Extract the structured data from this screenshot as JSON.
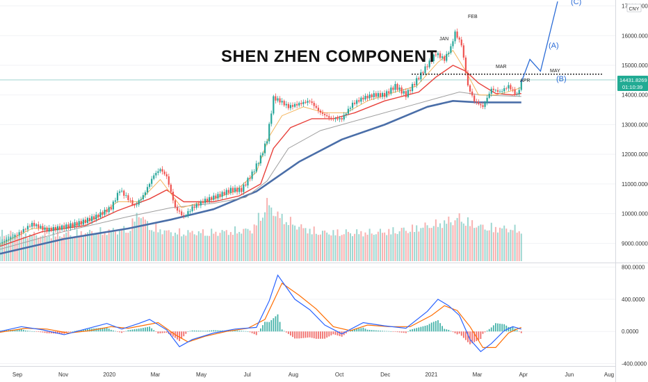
{
  "chart_data": [
    {
      "type": "candlestick",
      "title": "SHEN ZHEN COMPONENT",
      "currency_badge": "CNY",
      "ylim": [
        8400,
        17200
      ],
      "yticks": [
        "17000.0000",
        "16000.0000",
        "15000.0000",
        "14000.0000",
        "13000.0000",
        "12000.0000",
        "11000.0000",
        "10000.0000",
        "9000.0000"
      ],
      "ytick_values": [
        17000,
        16000,
        15000,
        14000,
        13000,
        12000,
        11000,
        10000,
        9000
      ],
      "last_price_label": "14431.8269",
      "countdown_label": "01:10:39",
      "last_price": 14431.8269,
      "price_path": [
        [
          0,
          9000
        ],
        [
          8,
          9300
        ],
        [
          15,
          9650
        ],
        [
          22,
          9450
        ],
        [
          30,
          9550
        ],
        [
          38,
          9700
        ],
        [
          45,
          9900
        ],
        [
          52,
          10200
        ],
        [
          56,
          10800
        ],
        [
          60,
          10500
        ],
        [
          63,
          10250
        ],
        [
          67,
          10600
        ],
        [
          72,
          11300
        ],
        [
          75,
          11500
        ],
        [
          78,
          11250
        ],
        [
          82,
          10200
        ],
        [
          86,
          9900
        ],
        [
          90,
          10200
        ],
        [
          96,
          10450
        ],
        [
          102,
          10600
        ],
        [
          108,
          10800
        ],
        [
          113,
          10800
        ],
        [
          118,
          11350
        ],
        [
          122,
          11900
        ],
        [
          125,
          12500
        ],
        [
          128,
          13900
        ],
        [
          131,
          13800
        ],
        [
          135,
          13600
        ],
        [
          140,
          13700
        ],
        [
          145,
          13800
        ],
        [
          150,
          13400
        ],
        [
          155,
          13200
        ],
        [
          160,
          13200
        ],
        [
          165,
          13700
        ],
        [
          170,
          13900
        ],
        [
          175,
          14000
        ],
        [
          180,
          14000
        ],
        [
          185,
          14300
        ],
        [
          190,
          14000
        ],
        [
          195,
          14500
        ],
        [
          200,
          15000
        ],
        [
          204,
          15400
        ],
        [
          208,
          15200
        ],
        [
          211,
          15600
        ],
        [
          213,
          16100
        ],
        [
          216,
          15700
        ],
        [
          219,
          14300
        ],
        [
          222,
          13800
        ],
        [
          226,
          13600
        ],
        [
          230,
          14200
        ],
        [
          234,
          14100
        ],
        [
          238,
          14300
        ],
        [
          242,
          14000
        ],
        [
          244,
          14430
        ]
      ],
      "ema_fast_path": [
        [
          0,
          8950
        ],
        [
          15,
          9500
        ],
        [
          30,
          9500
        ],
        [
          45,
          9850
        ],
        [
          55,
          10400
        ],
        [
          65,
          10400
        ],
        [
          75,
          11150
        ],
        [
          85,
          10200
        ],
        [
          100,
          10500
        ],
        [
          110,
          10750
        ],
        [
          120,
          11400
        ],
        [
          126,
          12600
        ],
        [
          132,
          13300
        ],
        [
          142,
          13600
        ],
        [
          152,
          13400
        ],
        [
          162,
          13400
        ],
        [
          172,
          13800
        ],
        [
          185,
          14100
        ],
        [
          195,
          14300
        ],
        [
          205,
          15100
        ],
        [
          212,
          15500
        ],
        [
          218,
          14800
        ],
        [
          224,
          14000
        ],
        [
          232,
          14000
        ],
        [
          240,
          14150
        ],
        [
          244,
          14250
        ]
      ],
      "ema_mid_path": [
        [
          0,
          8900
        ],
        [
          20,
          9400
        ],
        [
          40,
          9600
        ],
        [
          55,
          10100
        ],
        [
          70,
          10500
        ],
        [
          78,
          10800
        ],
        [
          86,
          10400
        ],
        [
          100,
          10400
        ],
        [
          112,
          10600
        ],
        [
          122,
          11000
        ],
        [
          128,
          12200
        ],
        [
          136,
          12900
        ],
        [
          146,
          13200
        ],
        [
          156,
          13200
        ],
        [
          166,
          13400
        ],
        [
          180,
          13800
        ],
        [
          196,
          14100
        ],
        [
          204,
          14600
        ],
        [
          212,
          15000
        ],
        [
          218,
          14800
        ],
        [
          224,
          14400
        ],
        [
          232,
          14050
        ],
        [
          240,
          14000
        ],
        [
          244,
          14050
        ]
      ],
      "ma_gray_path": [
        [
          0,
          8800
        ],
        [
          30,
          9400
        ],
        [
          60,
          9900
        ],
        [
          80,
          10200
        ],
        [
          100,
          10350
        ],
        [
          115,
          10550
        ],
        [
          125,
          11100
        ],
        [
          135,
          12200
        ],
        [
          150,
          12800
        ],
        [
          170,
          13200
        ],
        [
          190,
          13600
        ],
        [
          205,
          13900
        ],
        [
          215,
          14100
        ],
        [
          225,
          14000
        ],
        [
          244,
          13950
        ]
      ],
      "ma_slow_path": [
        [
          0,
          8650
        ],
        [
          30,
          9150
        ],
        [
          60,
          9500
        ],
        [
          80,
          9800
        ],
        [
          100,
          10150
        ],
        [
          120,
          10750
        ],
        [
          140,
          11750
        ],
        [
          160,
          12500
        ],
        [
          180,
          13000
        ],
        [
          200,
          13600
        ],
        [
          212,
          13800
        ],
        [
          224,
          13750
        ],
        [
          244,
          13750
        ]
      ],
      "volume_path": [
        [
          0,
          0.5
        ],
        [
          20,
          0.45
        ],
        [
          40,
          0.5
        ],
        [
          60,
          0.55
        ],
        [
          65,
          0.85
        ],
        [
          70,
          0.6
        ],
        [
          80,
          0.5
        ],
        [
          100,
          0.5
        ],
        [
          118,
          0.55
        ],
        [
          125,
          1.0
        ],
        [
          130,
          0.8
        ],
        [
          140,
          0.6
        ],
        [
          150,
          0.5
        ],
        [
          160,
          0.5
        ],
        [
          175,
          0.5
        ],
        [
          190,
          0.55
        ],
        [
          205,
          0.65
        ],
        [
          215,
          0.75
        ],
        [
          225,
          0.6
        ],
        [
          244,
          0.55
        ]
      ],
      "resistance_level": 14700,
      "projection_path": [
        [
          244,
          14430
        ],
        [
          248,
          15200
        ],
        [
          253,
          14800
        ],
        [
          261,
          17150
        ]
      ],
      "wave_labels": [
        "(A)",
        "(B)",
        "(C)"
      ],
      "month_annotations": [
        "JAN",
        "FEB",
        "MAR",
        "APR",
        "MAY"
      ],
      "xticks": [
        "Sep",
        "Nov",
        "2020",
        "Mar",
        "May",
        "Jul",
        "Aug",
        "Oct",
        "Dec",
        "2021",
        "Mar",
        "Apr",
        "Jun",
        "Aug"
      ],
      "colors": {
        "up": "#26a69a",
        "down": "#ef5350",
        "ema_fast": "#f4b35a",
        "ema_mid": "#e8403a",
        "ma_gray": "#9e9e9e",
        "ma_slow": "#4a6ea8",
        "projection": "#2a6bd6",
        "price_badge": "#22ab94"
      }
    },
    {
      "type": "macd",
      "ylim": [
        -430,
        840
      ],
      "yticks": [
        "800.0000",
        "400.0000",
        "0.0000",
        "-400.0000"
      ],
      "ytick_values": [
        800,
        400,
        0,
        -400
      ],
      "macd_path": [
        [
          0,
          0
        ],
        [
          10,
          60
        ],
        [
          20,
          20
        ],
        [
          30,
          -40
        ],
        [
          40,
          30
        ],
        [
          50,
          100
        ],
        [
          57,
          30
        ],
        [
          65,
          100
        ],
        [
          70,
          150
        ],
        [
          78,
          20
        ],
        [
          84,
          -190
        ],
        [
          90,
          -100
        ],
        [
          100,
          -20
        ],
        [
          110,
          30
        ],
        [
          120,
          50
        ],
        [
          126,
          380
        ],
        [
          130,
          700
        ],
        [
          138,
          400
        ],
        [
          145,
          270
        ],
        [
          152,
          80
        ],
        [
          160,
          -30
        ],
        [
          170,
          110
        ],
        [
          180,
          70
        ],
        [
          190,
          40
        ],
        [
          200,
          250
        ],
        [
          205,
          400
        ],
        [
          210,
          320
        ],
        [
          215,
          200
        ],
        [
          220,
          -100
        ],
        [
          225,
          -250
        ],
        [
          230,
          -150
        ],
        [
          236,
          10
        ],
        [
          240,
          60
        ],
        [
          244,
          30
        ]
      ],
      "signal_path": [
        [
          0,
          -10
        ],
        [
          12,
          40
        ],
        [
          22,
          30
        ],
        [
          32,
          -20
        ],
        [
          42,
          10
        ],
        [
          52,
          60
        ],
        [
          60,
          40
        ],
        [
          68,
          80
        ],
        [
          74,
          110
        ],
        [
          82,
          -40
        ],
        [
          88,
          -130
        ],
        [
          96,
          -60
        ],
        [
          106,
          0
        ],
        [
          116,
          40
        ],
        [
          124,
          150
        ],
        [
          132,
          600
        ],
        [
          140,
          450
        ],
        [
          148,
          280
        ],
        [
          156,
          60
        ],
        [
          164,
          10
        ],
        [
          172,
          80
        ],
        [
          182,
          60
        ],
        [
          192,
          60
        ],
        [
          202,
          200
        ],
        [
          208,
          320
        ],
        [
          214,
          260
        ],
        [
          220,
          60
        ],
        [
          226,
          -200
        ],
        [
          232,
          -200
        ],
        [
          238,
          -20
        ],
        [
          242,
          30
        ],
        [
          244,
          50
        ]
      ],
      "colors": {
        "macd": "#2962ff",
        "signal": "#ff6d00",
        "hist_up": "#26a69a",
        "hist_down": "#ef5350"
      }
    }
  ]
}
